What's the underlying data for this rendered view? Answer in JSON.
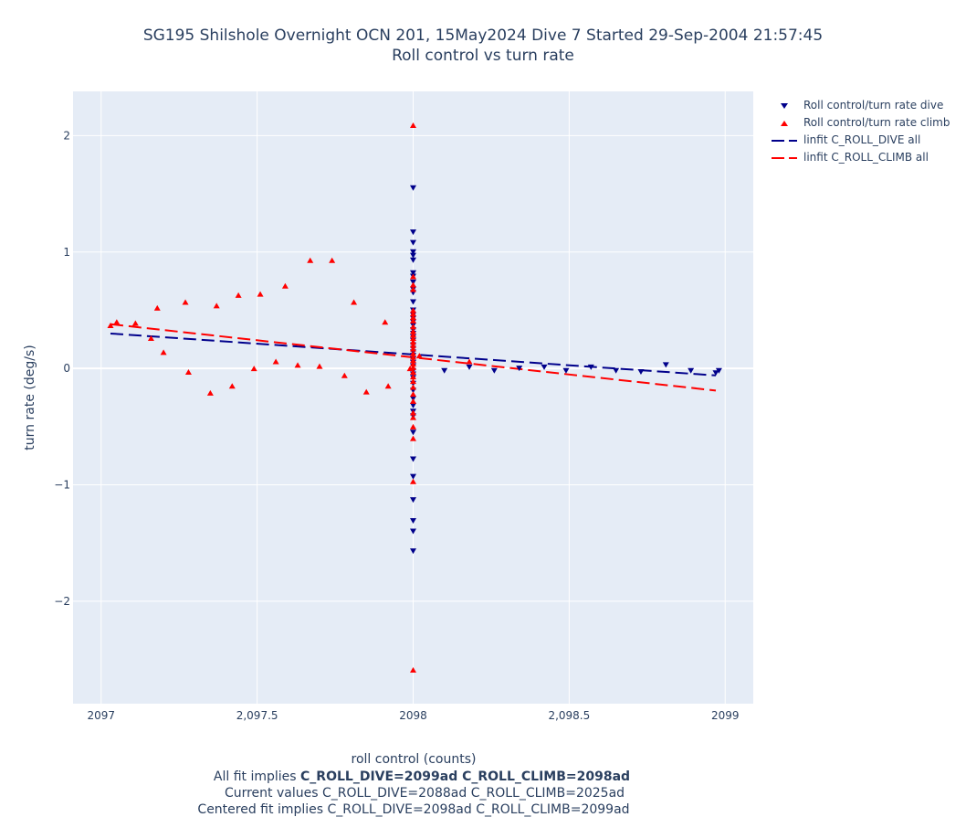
{
  "title": {
    "line1": "SG195 Shilshole Overnight OCN 201, 15May2024 Dive 7 Started 29-Sep-2004 21:57:45",
    "line2": "Roll control vs turn rate"
  },
  "annotations": {
    "line1_prefix": "All fit implies ",
    "line1_bold": "C_ROLL_DIVE=2099ad C_ROLL_CLIMB=2098ad",
    "line2": "Current values C_ROLL_DIVE=2088ad C_ROLL_CLIMB=2025ad",
    "line3": "Centered fit implies C_ROLL_DIVE=2098ad C_ROLL_CLIMB=2099ad"
  },
  "colors": {
    "plot_bg": "#e5ecf6",
    "grid": "#ffffff",
    "dive": "#00008b",
    "climb": "#ff0000"
  },
  "chart_data": {
    "type": "scatter",
    "xlabel": "roll control (counts)",
    "ylabel": "turn rate (deg/s)",
    "xlim": [
      2096.91,
      2099.09
    ],
    "ylim": [
      -2.88,
      2.38
    ],
    "xticks": [
      2097,
      2097.5,
      2098,
      2098.5,
      2099
    ],
    "xtick_labels": [
      "2097",
      "2,097.5",
      "2098",
      "2,098.5",
      "2099"
    ],
    "yticks": [
      -2,
      -1,
      0,
      1,
      2
    ],
    "ytick_labels": [
      "−2",
      "−1",
      "0",
      "1",
      "2"
    ],
    "grid": true,
    "legend_position": "top-right outside",
    "series": [
      {
        "name": "Roll control/turn rate dive",
        "marker": "triangle-down",
        "color": "#00008b",
        "points": [
          [
            2098,
            1.55
          ],
          [
            2098,
            1.17
          ],
          [
            2098,
            1.08
          ],
          [
            2098,
            1.0
          ],
          [
            2098,
            0.97
          ],
          [
            2098,
            0.93
          ],
          [
            2098,
            0.82
          ],
          [
            2098,
            0.79
          ],
          [
            2098,
            0.74
          ],
          [
            2098,
            0.68
          ],
          [
            2098,
            0.65
          ],
          [
            2098,
            0.57
          ],
          [
            2098,
            0.5
          ],
          [
            2098,
            0.46
          ],
          [
            2098,
            0.43
          ],
          [
            2098,
            0.4
          ],
          [
            2098,
            0.37
          ],
          [
            2098,
            0.33
          ],
          [
            2098,
            0.3
          ],
          [
            2098,
            0.27
          ],
          [
            2098,
            0.24
          ],
          [
            2098,
            0.2
          ],
          [
            2098,
            0.17
          ],
          [
            2098,
            0.14
          ],
          [
            2098,
            0.11
          ],
          [
            2098,
            0.08
          ],
          [
            2098,
            0.05
          ],
          [
            2098,
            0.02
          ],
          [
            2098,
            -0.02
          ],
          [
            2098,
            -0.05
          ],
          [
            2098,
            -0.08
          ],
          [
            2098,
            -0.13
          ],
          [
            2098,
            -0.19
          ],
          [
            2098,
            -0.26
          ],
          [
            2098,
            -0.32
          ],
          [
            2098,
            -0.37
          ],
          [
            2098,
            -0.41
          ],
          [
            2098,
            -0.55
          ],
          [
            2098,
            -0.78
          ],
          [
            2098,
            -0.93
          ],
          [
            2098,
            -1.13
          ],
          [
            2098,
            -1.31
          ],
          [
            2098,
            -1.4
          ],
          [
            2098,
            -1.57
          ],
          [
            2098.1,
            -0.02
          ],
          [
            2098.18,
            0.01
          ],
          [
            2098.26,
            -0.02
          ],
          [
            2098.34,
            0.0
          ],
          [
            2098.42,
            0.01
          ],
          [
            2098.49,
            -0.02
          ],
          [
            2098.57,
            0.01
          ],
          [
            2098.65,
            -0.02
          ],
          [
            2098.73,
            -0.03
          ],
          [
            2098.81,
            0.03
          ],
          [
            2098.89,
            -0.02
          ],
          [
            2098.97,
            -0.04
          ],
          [
            2098.98,
            -0.02
          ]
        ]
      },
      {
        "name": "Roll control/turn rate climb",
        "marker": "triangle-up",
        "color": "#ff0000",
        "points": [
          [
            2097.03,
            0.37
          ],
          [
            2097.05,
            0.4
          ],
          [
            2097.11,
            0.39
          ],
          [
            2097.16,
            0.26
          ],
          [
            2097.18,
            0.52
          ],
          [
            2097.2,
            0.14
          ],
          [
            2097.27,
            0.57
          ],
          [
            2097.28,
            -0.03
          ],
          [
            2097.35,
            -0.21
          ],
          [
            2097.37,
            0.54
          ],
          [
            2097.42,
            -0.15
          ],
          [
            2097.44,
            0.63
          ],
          [
            2097.49,
            0.0
          ],
          [
            2097.51,
            0.64
          ],
          [
            2097.56,
            0.06
          ],
          [
            2097.59,
            0.71
          ],
          [
            2097.63,
            0.03
          ],
          [
            2097.67,
            0.93
          ],
          [
            2097.7,
            0.02
          ],
          [
            2097.74,
            0.93
          ],
          [
            2097.78,
            -0.06
          ],
          [
            2097.81,
            0.57
          ],
          [
            2097.85,
            -0.2
          ],
          [
            2097.91,
            0.4
          ],
          [
            2097.92,
            -0.15
          ],
          [
            2097.99,
            0.0
          ],
          [
            2098,
            2.09
          ],
          [
            2098,
            0.79
          ],
          [
            2098,
            0.72
          ],
          [
            2098,
            0.68
          ],
          [
            2098,
            0.5
          ],
          [
            2098,
            0.47
          ],
          [
            2098,
            0.44
          ],
          [
            2098,
            0.41
          ],
          [
            2098,
            0.36
          ],
          [
            2098,
            0.32
          ],
          [
            2098,
            0.29
          ],
          [
            2098,
            0.26
          ],
          [
            2098,
            0.23
          ],
          [
            2098,
            0.2
          ],
          [
            2098,
            0.17
          ],
          [
            2098,
            0.13
          ],
          [
            2098,
            0.1
          ],
          [
            2098,
            0.07
          ],
          [
            2098,
            0.04
          ],
          [
            2098,
            0.01
          ],
          [
            2098,
            -0.03
          ],
          [
            2098,
            -0.07
          ],
          [
            2098,
            -0.11
          ],
          [
            2098,
            -0.16
          ],
          [
            2098,
            -0.22
          ],
          [
            2098,
            -0.28
          ],
          [
            2098,
            -0.38
          ],
          [
            2098,
            -0.42
          ],
          [
            2098,
            -0.5
          ],
          [
            2098,
            -0.6
          ],
          [
            2098,
            -0.97
          ],
          [
            2098,
            -2.59
          ],
          [
            2098.02,
            0.11
          ],
          [
            2098.18,
            0.06
          ]
        ]
      }
    ],
    "fits": [
      {
        "name": "linfit C_ROLL_DIVE all",
        "color": "#00008b",
        "x": [
          2097.03,
          2098.97
        ],
        "y": [
          0.3,
          -0.06
        ]
      },
      {
        "name": "linfit C_ROLL_CLIMB all",
        "color": "#ff0000",
        "x": [
          2097.03,
          2098.97
        ],
        "y": [
          0.38,
          -0.19
        ]
      }
    ]
  }
}
